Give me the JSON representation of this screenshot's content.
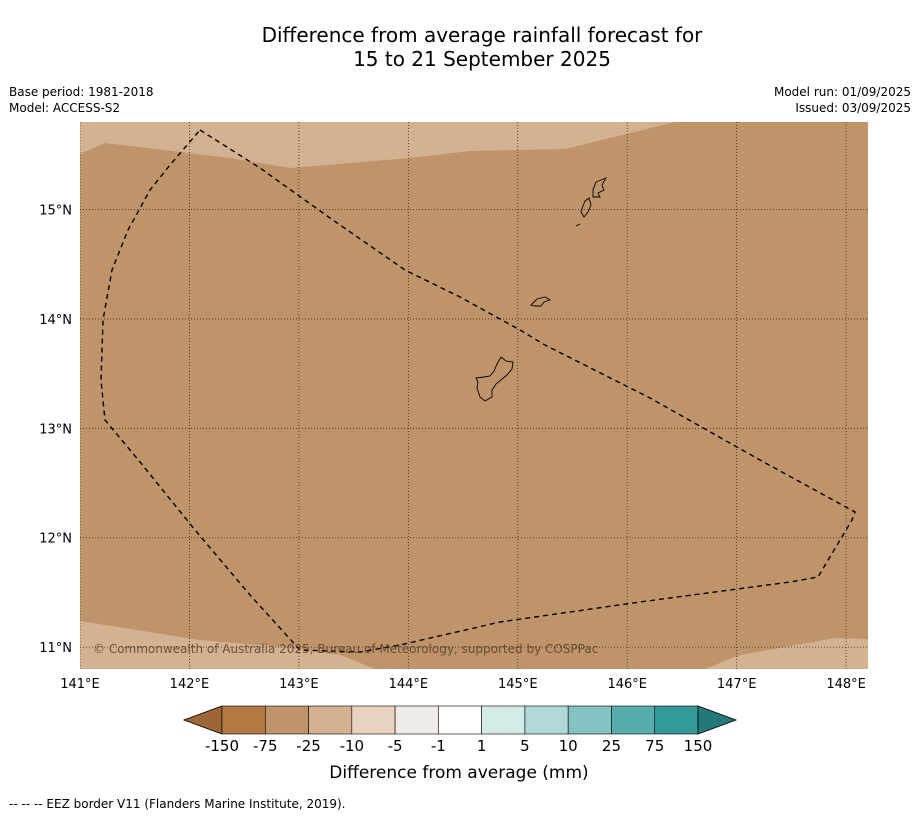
{
  "title": {
    "line1": "Difference from average rainfall forecast for",
    "line2": "15 to 21 September 2025"
  },
  "meta": {
    "base_period": "Base period: 1981-2018",
    "model": "Model: ACCESS-S2",
    "model_run": "Model run: 01/09/2025",
    "issued": "Issued: 03/09/2025"
  },
  "map": {
    "lon_range": [
      141,
      148.2
    ],
    "lat_range": [
      10.8,
      15.8
    ],
    "x_ticks": [
      "141°E",
      "142°E",
      "143°E",
      "144°E",
      "145°E",
      "146°E",
      "147°E",
      "148°E"
    ],
    "y_ticks": [
      "15°N",
      "14°N",
      "13°N",
      "12°N",
      "11°N"
    ],
    "copyright": "© Commonwealth of Australia 2025, Bureau of Meteorology, supported by COSPPac",
    "colors": {
      "main_fill": "#c0946a",
      "light_fill": "#d4b291",
      "grid": "#3a2a1a",
      "eez": "#000000"
    }
  },
  "colorbar": {
    "title": "Difference from average (mm)",
    "boundaries": [
      "-150",
      "-75",
      "-25",
      "-10",
      "-5",
      "-1",
      "1",
      "5",
      "10",
      "25",
      "75",
      "150"
    ],
    "colors": [
      "#9c6636",
      "#b27b43",
      "#c0946a",
      "#d4b291",
      "#e8d3c0",
      "#efeae5",
      "#ffffff",
      "#d5ebea",
      "#b0d8d6",
      "#85c3c2",
      "#57acac",
      "#339a98",
      "#23787a"
    ]
  },
  "footnote": "--  --  -- EEZ border V11 (Flanders Marine Institute, 2019)."
}
